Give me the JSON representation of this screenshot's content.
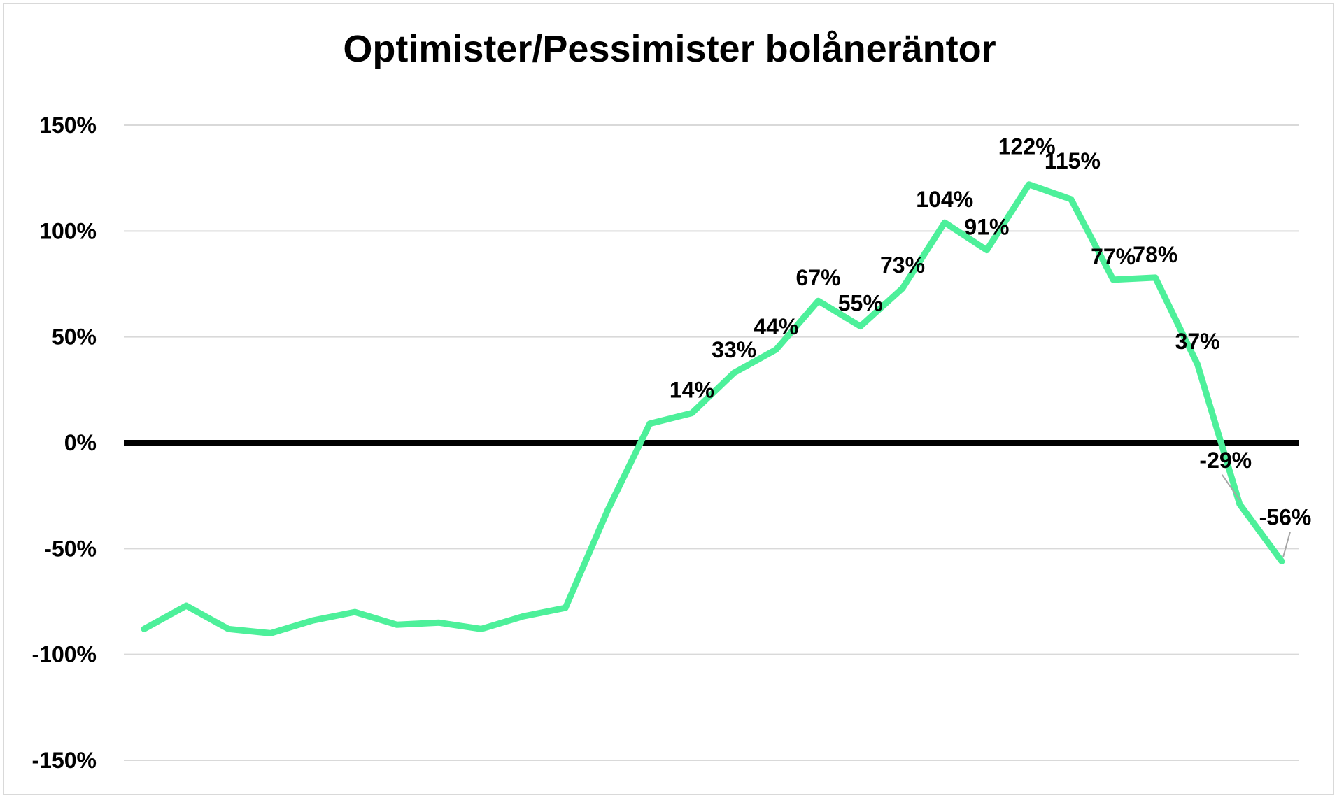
{
  "chart_data": {
    "type": "line",
    "title": "Optimister/Pessimister bolåneräntor",
    "xlabel": "",
    "ylabel": "",
    "ylim": [
      -150,
      150
    ],
    "y_ticks": [
      150,
      100,
      50,
      0,
      -50,
      -100,
      -150
    ],
    "y_tick_labels": [
      "150%",
      "100%",
      "50%",
      "0%",
      "-50%",
      "-100%",
      "-150%"
    ],
    "grid": true,
    "legend": "none",
    "line_color": "#4df09a",
    "zero_line_color": "#000000",
    "series": [
      {
        "values": [
          -88,
          -77,
          -88,
          -90,
          -84,
          -80,
          -86,
          -85,
          -88,
          -82,
          -78,
          -32,
          9,
          14,
          33,
          44,
          67,
          55,
          73,
          104,
          91,
          122,
          115,
          77,
          78,
          37,
          -29,
          -56
        ],
        "labels": [
          "",
          "",
          "",
          "",
          "",
          "",
          "",
          "",
          "",
          "",
          "",
          "",
          "",
          "14%",
          "33%",
          "44%",
          "67%",
          "55%",
          "73%",
          "104%",
          "91%",
          "122%",
          "115%",
          "77%",
          "78%",
          "37%",
          "-29%",
          "-56%"
        ]
      }
    ]
  }
}
